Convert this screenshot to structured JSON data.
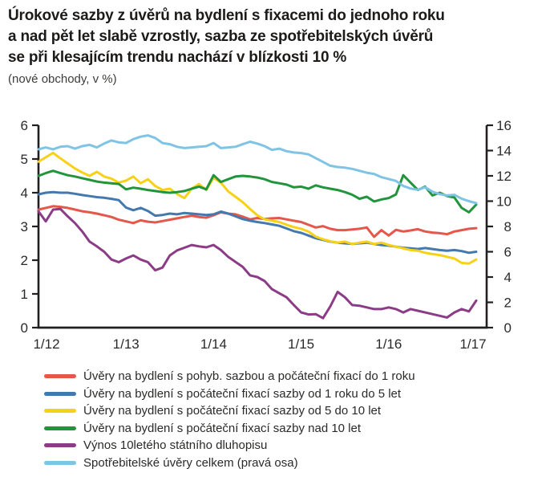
{
  "figure": {
    "title_lines": [
      "Úrokové sazby z úvěrů na bydlení s fixacemi do jednoho roku",
      "a nad pět let slabě vzrostly, sazba ze spotřebitelských úvěrů",
      "se při klesajícím trendu nachází v blízkosti 10 %"
    ],
    "subtitle": "(nové obchody, v %)"
  },
  "colors": {
    "axis": "#231f20",
    "tick_label": "#2a2a28",
    "title": "#1d1b19"
  },
  "chart_data": {
    "type": "line",
    "title": "Úrokové sazby z úvěrů na bydlení (nové obchody, v %)",
    "grid": false,
    "legend_position": "bottom-left",
    "x_axis": {
      "tick_labels": [
        "1/12",
        "1/13",
        "1/14",
        "1/15",
        "1/16",
        "1/17"
      ],
      "tick_month_indices": [
        0,
        12,
        24,
        36,
        48,
        60
      ],
      "months_total": 61,
      "frequency": "monthly"
    },
    "left_axis": {
      "min": 0,
      "max": 6,
      "step": 1
    },
    "right_axis": {
      "min": 0,
      "max": 16,
      "step": 2
    },
    "series": [
      {
        "name": "Úvěry na bydlení s pohyb. sazbou a počáteční fixací do 1 roku",
        "color": "#e4574a",
        "axis": "left",
        "values": [
          3.5,
          3.55,
          3.6,
          3.58,
          3.55,
          3.5,
          3.45,
          3.42,
          3.38,
          3.33,
          3.28,
          3.2,
          3.15,
          3.1,
          3.18,
          3.14,
          3.12,
          3.16,
          3.2,
          3.24,
          3.28,
          3.32,
          3.28,
          3.26,
          3.33,
          3.42,
          3.38,
          3.36,
          3.29,
          3.21,
          3.25,
          3.22,
          3.24,
          3.25,
          3.21,
          3.17,
          3.13,
          3.05,
          2.97,
          3.01,
          2.93,
          2.89,
          2.89,
          2.91,
          2.93,
          2.97,
          2.69,
          2.89,
          2.73,
          2.9,
          2.85,
          2.88,
          2.92,
          2.85,
          2.82,
          2.8,
          2.77,
          2.85,
          2.89,
          2.93,
          2.95
        ]
      },
      {
        "name": "Úvěry na bydlení s počáteční fixací sazby od 1 roku do 5 let",
        "color": "#4379ae",
        "axis": "left",
        "values": [
          3.95,
          4.0,
          4.02,
          4.0,
          4.0,
          3.97,
          3.93,
          3.9,
          3.87,
          3.85,
          3.82,
          3.78,
          3.56,
          3.48,
          3.55,
          3.46,
          3.32,
          3.34,
          3.38,
          3.36,
          3.4,
          3.38,
          3.36,
          3.34,
          3.36,
          3.44,
          3.38,
          3.3,
          3.22,
          3.17,
          3.13,
          3.1,
          3.06,
          3.02,
          2.94,
          2.86,
          2.81,
          2.73,
          2.65,
          2.6,
          2.55,
          2.52,
          2.5,
          2.48,
          2.5,
          2.52,
          2.48,
          2.45,
          2.43,
          2.4,
          2.37,
          2.35,
          2.33,
          2.36,
          2.33,
          2.3,
          2.28,
          2.3,
          2.27,
          2.22,
          2.25
        ]
      },
      {
        "name": "Úvěry na bydlení s počáteční fixací sazby od 5 do 10 let",
        "color": "#f7d118",
        "axis": "left",
        "values": [
          4.92,
          5.05,
          5.18,
          5.02,
          4.87,
          4.72,
          4.6,
          4.5,
          4.62,
          4.48,
          4.42,
          4.3,
          4.36,
          4.48,
          4.28,
          4.4,
          4.2,
          4.08,
          4.12,
          3.96,
          3.84,
          4.12,
          4.26,
          4.08,
          4.44,
          4.3,
          4.04,
          3.88,
          3.72,
          3.52,
          3.33,
          3.21,
          3.17,
          3.13,
          3.05,
          2.98,
          2.93,
          2.85,
          2.7,
          2.62,
          2.56,
          2.52,
          2.55,
          2.48,
          2.52,
          2.55,
          2.48,
          2.52,
          2.45,
          2.4,
          2.35,
          2.3,
          2.28,
          2.22,
          2.18,
          2.15,
          2.1,
          2.05,
          1.92,
          1.9,
          2.02
        ]
      },
      {
        "name": "Úvěry na bydlení s počáteční fixací sazby nad 10 let",
        "color": "#21953c",
        "axis": "left",
        "values": [
          4.5,
          4.58,
          4.65,
          4.58,
          4.52,
          4.48,
          4.43,
          4.38,
          4.33,
          4.3,
          4.28,
          4.26,
          4.1,
          4.15,
          4.12,
          4.08,
          4.05,
          4.02,
          4.0,
          4.02,
          4.05,
          4.12,
          4.18,
          4.1,
          4.52,
          4.32,
          4.4,
          4.48,
          4.5,
          4.48,
          4.45,
          4.4,
          4.32,
          4.28,
          4.24,
          4.16,
          4.18,
          4.12,
          4.22,
          4.16,
          4.12,
          4.08,
          4.02,
          3.94,
          3.82,
          3.88,
          3.74,
          3.8,
          3.84,
          3.95,
          4.52,
          4.3,
          4.08,
          4.18,
          3.92,
          4.0,
          3.9,
          3.86,
          3.55,
          3.42,
          3.65
        ]
      },
      {
        "name": "Výnos 10letého státního dluhopisu",
        "color": "#8c3c86",
        "axis": "left",
        "values": [
          3.45,
          3.15,
          3.5,
          3.52,
          3.3,
          3.1,
          2.85,
          2.55,
          2.41,
          2.25,
          2.02,
          1.94,
          2.05,
          2.14,
          2.02,
          1.94,
          1.7,
          1.78,
          2.14,
          2.29,
          2.37,
          2.45,
          2.41,
          2.38,
          2.45,
          2.3,
          2.1,
          1.95,
          1.8,
          1.55,
          1.5,
          1.38,
          1.14,
          1.02,
          0.9,
          0.67,
          0.45,
          0.39,
          0.4,
          0.28,
          0.63,
          1.06,
          0.9,
          0.67,
          0.65,
          0.6,
          0.55,
          0.55,
          0.6,
          0.55,
          0.45,
          0.55,
          0.5,
          0.45,
          0.4,
          0.35,
          0.3,
          0.45,
          0.55,
          0.48,
          0.8
        ]
      },
      {
        "name": "Spotřebitelské úvěry celkem (pravá osa)",
        "color": "#7fc4e5",
        "axis": "right",
        "values": [
          14.1,
          14.25,
          14.1,
          14.3,
          14.35,
          14.15,
          14.35,
          14.45,
          14.25,
          14.55,
          14.8,
          14.65,
          14.6,
          14.9,
          15.1,
          15.2,
          15.0,
          14.6,
          14.5,
          14.3,
          14.2,
          14.25,
          14.3,
          14.35,
          14.6,
          14.2,
          14.25,
          14.3,
          14.5,
          14.7,
          14.55,
          14.35,
          14.05,
          14.15,
          13.95,
          13.85,
          13.8,
          13.7,
          13.4,
          13.1,
          12.8,
          12.7,
          12.65,
          12.55,
          12.4,
          12.25,
          12.15,
          11.9,
          11.75,
          11.6,
          11.2,
          11.0,
          10.9,
          11.1,
          10.75,
          10.55,
          10.45,
          10.5,
          10.2,
          10.0,
          9.85
        ]
      }
    ]
  }
}
